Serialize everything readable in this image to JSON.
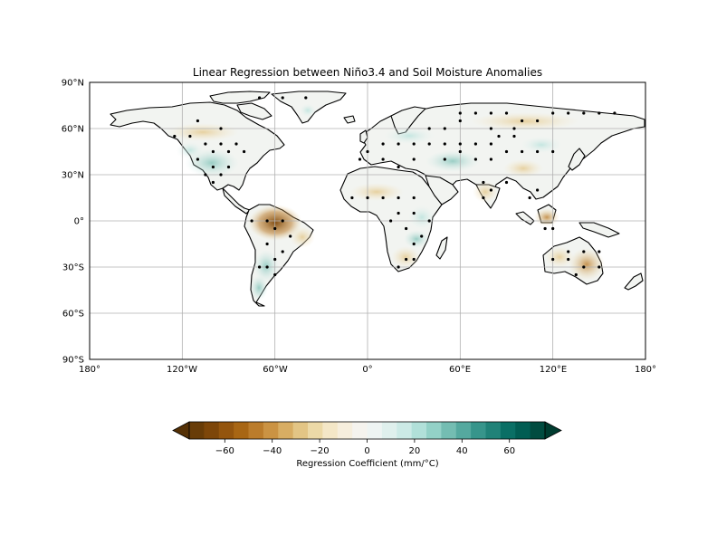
{
  "title": "Linear Regression between Niño3.4 and Soil Moisture Anomalies",
  "map": {
    "lat_ticks": [
      {
        "value": 90,
        "label": "90°N"
      },
      {
        "value": 60,
        "label": "60°N"
      },
      {
        "value": 30,
        "label": "30°N"
      },
      {
        "value": 0,
        "label": "0°"
      },
      {
        "value": -30,
        "label": "30°S"
      },
      {
        "value": -60,
        "label": "60°S"
      },
      {
        "value": -90,
        "label": "90°S"
      }
    ],
    "lon_ticks": [
      {
        "value": -180,
        "label": "180°"
      },
      {
        "value": -120,
        "label": "120°W"
      },
      {
        "value": -60,
        "label": "60°W"
      },
      {
        "value": 0,
        "label": "0°"
      },
      {
        "value": 60,
        "label": "60°E"
      },
      {
        "value": 120,
        "label": "120°E"
      },
      {
        "value": 180,
        "label": "180°"
      }
    ],
    "gridlines": true,
    "projection": "PlateCarree",
    "extent": {
      "lon": [
        -180,
        180
      ],
      "lat": [
        -90,
        90
      ]
    }
  },
  "colorbar": {
    "label": "Regression Coefficient (mm/°C)",
    "range": [
      -75,
      75
    ],
    "step": 5,
    "tick_values": [
      -60,
      -40,
      -20,
      0,
      20,
      40,
      60
    ],
    "tick_labels": [
      "−60",
      "−40",
      "−20",
      "0",
      "20",
      "40",
      "60"
    ],
    "extend": "both",
    "colormap": "BrBG",
    "colors": [
      "#543005",
      "#683c07",
      "#7d4609",
      "#94550e",
      "#a86614",
      "#bb7c2b",
      "#cb9343",
      "#d8ad63",
      "#e3c585",
      "#ecd9a7",
      "#f4e7c7",
      "#f6eedd",
      "#f5f3ee",
      "#eef4f3",
      "#dff0ed",
      "#cceae6",
      "#b1e0d9",
      "#93d1c7",
      "#74bdb2",
      "#55a99f",
      "#37958b",
      "#208278",
      "#0a6f65",
      "#015d53",
      "#014c40",
      "#003c30"
    ]
  },
  "chart_data": {
    "type": "map",
    "variable": "regression coefficient of soil moisture anomaly on Niño3.4",
    "units": "mm/°C",
    "stippling": "significant",
    "regions": [
      {
        "lon": -60,
        "lat": -2,
        "value": -60
      },
      {
        "lon": -48,
        "lat": -8,
        "value": -20
      },
      {
        "lon": -70,
        "lat": 2,
        "value": -25
      },
      {
        "lon": 140,
        "lat": -28,
        "value": -40
      },
      {
        "lon": 133,
        "lat": -22,
        "value": -20
      },
      {
        "lon": 147,
        "lat": -30,
        "value": -45
      },
      {
        "lon": 120,
        "lat": -2,
        "value": -30
      },
      {
        "lon": 30,
        "lat": -25,
        "value": -20
      },
      {
        "lon": 40,
        "lat": 5,
        "value": 20
      },
      {
        "lon": 35,
        "lat": -5,
        "value": 15
      },
      {
        "lon": 76,
        "lat": 22,
        "value": -25
      },
      {
        "lon": 100,
        "lat": 28,
        "value": -15
      },
      {
        "lon": 50,
        "lat": 35,
        "value": 20
      },
      {
        "lon": -100,
        "lat": 38,
        "value": 30
      },
      {
        "lon": -110,
        "lat": 45,
        "value": 20
      },
      {
        "lon": -65,
        "lat": -30,
        "value": 40
      },
      {
        "lon": -70,
        "lat": -42,
        "value": 30
      },
      {
        "lon": 100,
        "lat": 55,
        "value": -10
      },
      {
        "lon": 20,
        "lat": 55,
        "value": 10
      },
      {
        "lon": -80,
        "lat": 55,
        "value": -10
      },
      {
        "lon": 0,
        "lat": 15,
        "value": 5
      }
    ],
    "significant_points": [
      [
        -85,
        50
      ],
      [
        -95,
        50
      ],
      [
        -105,
        50
      ],
      [
        -115,
        55
      ],
      [
        -125,
        55
      ],
      [
        -80,
        45
      ],
      [
        -90,
        45
      ],
      [
        -100,
        45
      ],
      [
        -110,
        40
      ],
      [
        -100,
        35
      ],
      [
        -90,
        35
      ],
      [
        -95,
        30
      ],
      [
        -105,
        30
      ],
      [
        -100,
        25
      ],
      [
        -110,
        65
      ],
      [
        -95,
        60
      ],
      [
        -70,
        80
      ],
      [
        -40,
        80
      ],
      [
        -55,
        80
      ],
      [
        -75,
        0
      ],
      [
        -65,
        0
      ],
      [
        -55,
        0
      ],
      [
        -60,
        -5
      ],
      [
        -50,
        -10
      ],
      [
        -65,
        -15
      ],
      [
        -60,
        -25
      ],
      [
        -70,
        -30
      ],
      [
        -60,
        -35
      ],
      [
        -65,
        -30
      ],
      [
        -55,
        -20
      ],
      [
        0,
        15
      ],
      [
        -10,
        15
      ],
      [
        10,
        15
      ],
      [
        20,
        15
      ],
      [
        30,
        15
      ],
      [
        20,
        5
      ],
      [
        30,
        5
      ],
      [
        15,
        0
      ],
      [
        25,
        -5
      ],
      [
        30,
        -15
      ],
      [
        35,
        -10
      ],
      [
        25,
        -25
      ],
      [
        30,
        -25
      ],
      [
        20,
        -30
      ],
      [
        40,
        0
      ],
      [
        40,
        50
      ],
      [
        50,
        50
      ],
      [
        60,
        50
      ],
      [
        70,
        50
      ],
      [
        80,
        50
      ],
      [
        90,
        45
      ],
      [
        100,
        45
      ],
      [
        110,
        45
      ],
      [
        120,
        45
      ],
      [
        60,
        45
      ],
      [
        70,
        40
      ],
      [
        80,
        40
      ],
      [
        50,
        40
      ],
      [
        30,
        40
      ],
      [
        20,
        35
      ],
      [
        10,
        40
      ],
      [
        0,
        45
      ],
      [
        -5,
        40
      ],
      [
        10,
        50
      ],
      [
        20,
        50
      ],
      [
        30,
        50
      ],
      [
        40,
        60
      ],
      [
        50,
        60
      ],
      [
        60,
        65
      ],
      [
        80,
        60
      ],
      [
        95,
        55
      ],
      [
        100,
        65
      ],
      [
        110,
        65
      ],
      [
        120,
        70
      ],
      [
        130,
        70
      ],
      [
        140,
        70
      ],
      [
        150,
        70
      ],
      [
        160,
        70
      ],
      [
        90,
        70
      ],
      [
        80,
        70
      ],
      [
        70,
        70
      ],
      [
        60,
        70
      ],
      [
        95,
        60
      ],
      [
        85,
        55
      ],
      [
        75,
        25
      ],
      [
        80,
        20
      ],
      [
        75,
        15
      ],
      [
        90,
        25
      ],
      [
        110,
        20
      ],
      [
        105,
        15
      ],
      [
        120,
        -5
      ],
      [
        115,
        -5
      ],
      [
        130,
        -20
      ],
      [
        140,
        -20
      ],
      [
        150,
        -20
      ],
      [
        120,
        -25
      ],
      [
        130,
        -25
      ],
      [
        140,
        -30
      ],
      [
        150,
        -30
      ],
      [
        135,
        -35
      ]
    ]
  }
}
